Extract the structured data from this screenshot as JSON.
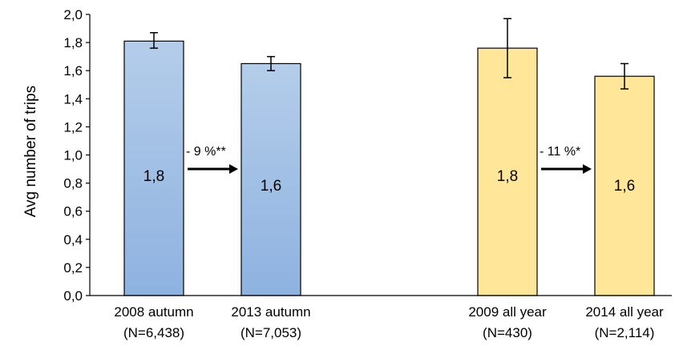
{
  "chart_data": {
    "type": "bar",
    "ylabel": "Avg number of trips",
    "ylim": [
      0,
      2.0
    ],
    "yticks": [
      "0,0",
      "0,2",
      "0,4",
      "0,6",
      "0,8",
      "1,0",
      "1,2",
      "1,4",
      "1,6",
      "1,8",
      "2,0"
    ],
    "grid": false,
    "categories": [
      {
        "line1": "2008 autumn",
        "line2": "(N=6,438)"
      },
      {
        "line1": "2013 autumn",
        "line2": "(N=7,053)"
      },
      {
        "line1": "2009 all year",
        "line2": "(N=430)"
      },
      {
        "line1": "2014 all year",
        "line2": "(N=2,114)"
      }
    ],
    "values": [
      1.81,
      1.65,
      1.76,
      1.56
    ],
    "error_low": [
      1.76,
      1.6,
      1.55,
      1.47
    ],
    "error_high": [
      1.87,
      1.7,
      1.97,
      1.65
    ],
    "data_labels": [
      "1,8",
      "1,6",
      "1,8",
      "1,6"
    ],
    "bar_colors": [
      "#a9c7ea",
      "#a9c7ea",
      "#ffe699",
      "#ffe699"
    ],
    "bar_gradient_colors": [
      "#8fb3e0",
      "#8fb3e0",
      "#ffe699",
      "#ffe699"
    ],
    "annotations": [
      {
        "text": "- 9 %**",
        "from": 0,
        "to": 1
      },
      {
        "text": "- 11 %*",
        "from": 2,
        "to": 3
      }
    ]
  }
}
